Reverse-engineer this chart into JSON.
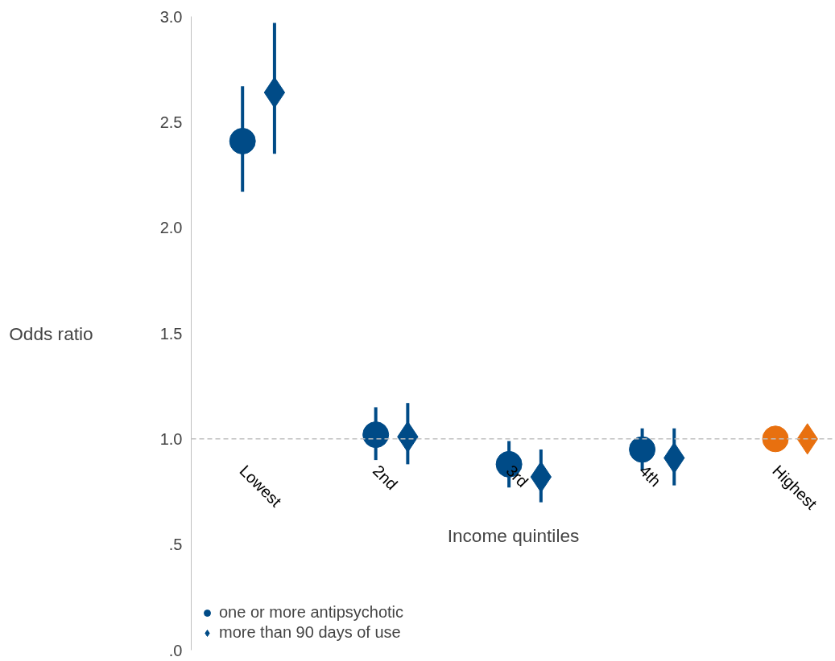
{
  "chart_data": {
    "type": "scatter",
    "ylabel": "Odds ratio",
    "xlabel": "Income quintiles",
    "categories": [
      "Lowest",
      "2nd",
      "3rd",
      "4th",
      "Highest"
    ],
    "series": [
      {
        "name": "one or more antipsychotic",
        "marker": "circle",
        "colors": [
          "#004b87",
          "#004b87",
          "#004b87",
          "#004b87",
          "#e8700f"
        ],
        "values": [
          2.41,
          1.02,
          0.88,
          0.95,
          1.0
        ],
        "errors": [
          [
            2.17,
            2.67
          ],
          [
            0.9,
            1.15
          ],
          [
            0.77,
            0.99
          ],
          [
            0.85,
            1.05
          ],
          null
        ]
      },
      {
        "name": "more than 90 days of use",
        "marker": "diamond",
        "colors": [
          "#004b87",
          "#004b87",
          "#004b87",
          "#004b87",
          "#e8700f"
        ],
        "values": [
          2.64,
          1.01,
          0.82,
          0.91,
          1.0
        ],
        "errors": [
          [
            2.35,
            2.97
          ],
          [
            0.88,
            1.17
          ],
          [
            0.7,
            0.95
          ],
          [
            0.78,
            1.05
          ],
          null
        ]
      }
    ],
    "ylim": [
      0,
      3
    ],
    "yticks": [
      {
        "value": 0,
        "label": ".0"
      },
      {
        "value": 0.5,
        "label": ".5"
      },
      {
        "value": 1,
        "label": "1.0"
      },
      {
        "value": 1.5,
        "label": "1.5"
      },
      {
        "value": 2,
        "label": "2.0"
      },
      {
        "value": 2.5,
        "label": "2.5"
      },
      {
        "value": 3,
        "label": "3.0"
      }
    ],
    "ref_lines": [
      {
        "axis": "y",
        "value": 1.0,
        "label": null,
        "color": "#bfbfbf",
        "line_style": "dashed"
      }
    ],
    "grid": false,
    "legend": "bottom left"
  }
}
